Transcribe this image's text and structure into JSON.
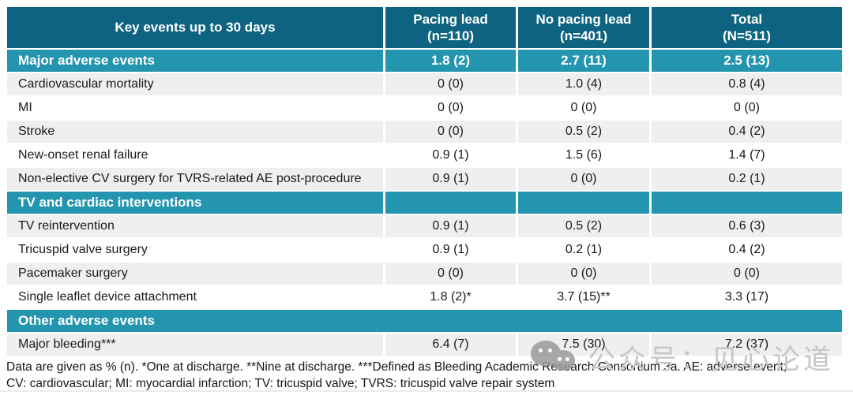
{
  "table": {
    "header": {
      "col0": "Key events up to 30 days",
      "col1": "Pacing lead\n(n=110)",
      "col2": "No pacing lead\n(n=401)",
      "col3": "Total\n(N=511)"
    },
    "rows": [
      {
        "type": "section",
        "label": "Major adverse events",
        "values": [
          "1.8 (2)",
          "2.7 (11)",
          "2.5 (13)"
        ]
      },
      {
        "type": "data",
        "label": "Cardiovascular mortality",
        "values": [
          "0 (0)",
          "1.0 (4)",
          "0.8 (4)"
        ]
      },
      {
        "type": "data",
        "label": "MI",
        "values": [
          "0 (0)",
          "0 (0)",
          "0 (0)"
        ]
      },
      {
        "type": "data",
        "label": "Stroke",
        "values": [
          "0 (0)",
          "0.5 (2)",
          "0.4 (2)"
        ]
      },
      {
        "type": "data",
        "label": "New-onset renal failure",
        "values": [
          "0.9 (1)",
          "1.5 (6)",
          "1.4 (7)"
        ]
      },
      {
        "type": "data",
        "label": "Non-elective CV surgery for TVRS-related AE post-procedure",
        "values": [
          "0.9 (1)",
          "0 (0)",
          "0.2 (1)"
        ]
      },
      {
        "type": "section",
        "label": "TV and cardiac interventions",
        "values": [
          "",
          "",
          ""
        ]
      },
      {
        "type": "data",
        "label": "TV reintervention",
        "values": [
          "0.9 (1)",
          "0.5 (2)",
          "0.6 (3)"
        ]
      },
      {
        "type": "data",
        "label": "Tricuspid valve surgery",
        "values": [
          "0.9 (1)",
          "0.2 (1)",
          "0.4 (2)"
        ]
      },
      {
        "type": "data",
        "label": "Pacemaker surgery",
        "values": [
          "0 (0)",
          "0 (0)",
          "0 (0)"
        ]
      },
      {
        "type": "data",
        "label": "Single leaflet device attachment",
        "values": [
          "1.8 (2)*",
          "3.7 (15)**",
          "3.3 (17)"
        ]
      },
      {
        "type": "section-full",
        "label": "Other adverse events",
        "values": [
          "",
          "",
          ""
        ]
      },
      {
        "type": "data",
        "label": "Major bleeding***",
        "values": [
          "6.4 (7)",
          "7.5 (30)",
          "7.2 (37)"
        ]
      }
    ],
    "footnote_line1": "Data are given as % (n). *One at discharge. **Nine at discharge. ***Defined as Bleeding Academic Research Consortium 3a. AE: adverse event;",
    "footnote_line2": "CV: cardiovascular; MI: myocardial infarction; TV: tricuspid valve; TVRS: tricuspid valve repair system"
  },
  "watermark": {
    "icon": "wechat-icon",
    "text": "公众号：见心论道"
  },
  "colors": {
    "header_teal": "#0e6480",
    "section_teal": "#2495af",
    "row_gray": "#efefef",
    "row_white": "#ffffff",
    "body_text": "#1a1a1a",
    "watermark_gray": "#c7c7c7"
  }
}
